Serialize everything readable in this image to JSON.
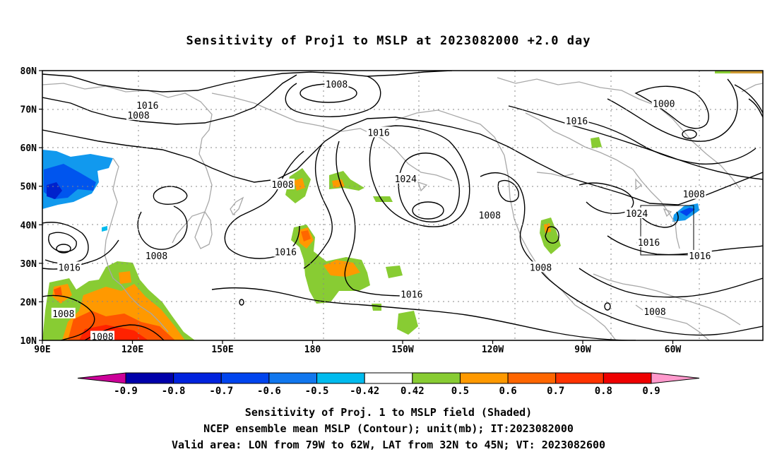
{
  "title": "Sensitivity of Proj1 to MSLP at 2023082000 +2.0 day",
  "lat_labels": [
    "80N",
    "70N",
    "60N",
    "50N",
    "40N",
    "30N",
    "20N",
    "10N"
  ],
  "lon_labels": [
    "90E",
    "120E",
    "150E",
    "180",
    "150W",
    "120W",
    "90W",
    "60W"
  ],
  "contour_labels": [
    {
      "text": "1008",
      "lon": 188,
      "lat": 76.5
    },
    {
      "text": "1016",
      "lon": 125,
      "lat": 71.0
    },
    {
      "text": "1008",
      "lon": 122,
      "lat": 68.5
    },
    {
      "text": "1016",
      "lon": 202,
      "lat": 64.0
    },
    {
      "text": "1016",
      "lon": 268,
      "lat": 67.0
    },
    {
      "text": "1000",
      "lon": 297,
      "lat": 71.5
    },
    {
      "text": "1008",
      "lon": 170,
      "lat": 50.5
    },
    {
      "text": "1024",
      "lon": 211,
      "lat": 52.0
    },
    {
      "text": "1008",
      "lon": 239,
      "lat": 42.5
    },
    {
      "text": "1024",
      "lon": 288,
      "lat": 43.0
    },
    {
      "text": "1008",
      "lon": 307,
      "lat": 48.0
    },
    {
      "text": "1016",
      "lon": 292,
      "lat": 35.5
    },
    {
      "text": "1016",
      "lon": 309,
      "lat": 32.0
    },
    {
      "text": "1016",
      "lon": 171,
      "lat": 33.0
    },
    {
      "text": "1008",
      "lon": 128,
      "lat": 32.0
    },
    {
      "text": "1016",
      "lon": 99,
      "lat": 29.0
    },
    {
      "text": "1008",
      "lon": 97,
      "lat": 17.0
    },
    {
      "text": "1008",
      "lon": 110,
      "lat": 11.0
    },
    {
      "text": "1016",
      "lon": 213,
      "lat": 22.0
    },
    {
      "text": "1008",
      "lon": 256,
      "lat": 29.0
    },
    {
      "text": "1008",
      "lon": 294,
      "lat": 17.5
    }
  ],
  "colorbar": {
    "labels": [
      "-0.9",
      "-0.8",
      "-0.7",
      "-0.6",
      "-0.5",
      "-0.42",
      "0.42",
      "0.5",
      "0.6",
      "0.7",
      "0.8",
      "0.9"
    ],
    "colors": [
      "#cc0099",
      "#0000aa",
      "#0022dd",
      "#0044ee",
      "#1177ee",
      "#00bbee",
      "#ffffff",
      "#88cc33",
      "#ff9900",
      "#ff6600",
      "#ff3300",
      "#ee0000",
      "#ff99cc"
    ]
  },
  "valid_box": {
    "lon_from": "79W",
    "lon_to": "62W",
    "lat_from": "32N",
    "lat_to": "45N"
  },
  "captions": [
    "Sensitivity of Proj. 1 to MSLP field (Shaded)",
    "NCEP ensemble mean MSLP (Contour); unit(mb); IT:2023082000",
    "Valid area: LON from 79W to 62W, LAT from 32N to 45N; VT: 2023082600"
  ]
}
